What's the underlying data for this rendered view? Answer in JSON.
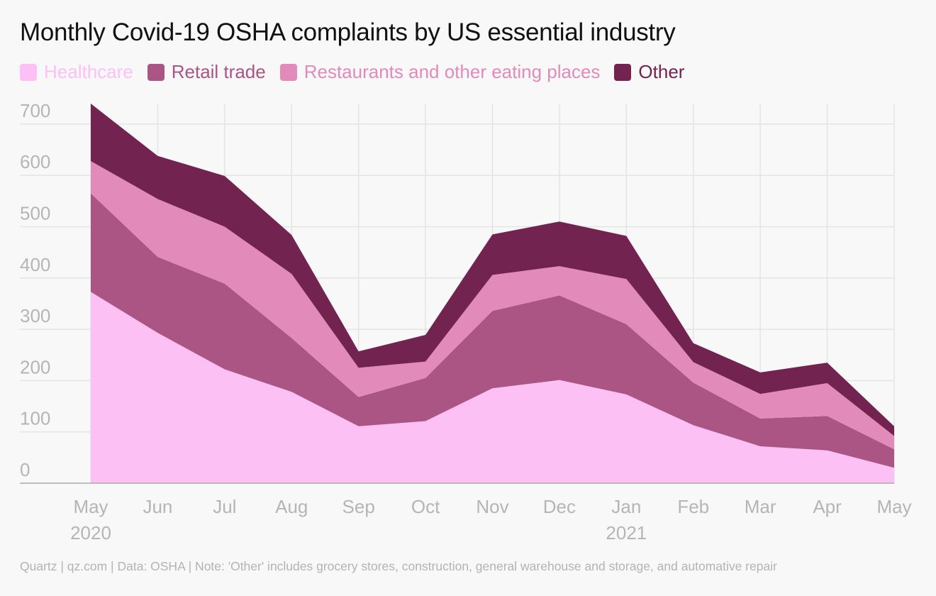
{
  "chart_data": {
    "type": "area",
    "stacked": true,
    "title": "Monthly Covid-19 OSHA complaints by US essential industry",
    "x": [
      "May",
      "Jun",
      "Jul",
      "Aug",
      "Sep",
      "Oct",
      "Nov",
      "Dec",
      "Jan",
      "Feb",
      "Mar",
      "Apr",
      "May"
    ],
    "year_labels": [
      "2020",
      "",
      "",
      "",
      "",
      "",
      "",
      "",
      "2021",
      "",
      "",
      "",
      ""
    ],
    "ylim": [
      0,
      740
    ],
    "yticks": [
      0,
      100,
      200,
      300,
      400,
      500,
      600,
      700
    ],
    "grid": true,
    "legend_position": "top-left",
    "series": [
      {
        "name": "Healthcare",
        "color": "#fcc0f5",
        "values": [
          373,
          293,
          222,
          178,
          111,
          121,
          185,
          201,
          173,
          113,
          72,
          64,
          30
        ]
      },
      {
        "name": "Retail trade",
        "color": "#aa5583",
        "values": [
          192,
          148,
          167,
          105,
          57,
          84,
          151,
          165,
          137,
          83,
          54,
          67,
          36
        ]
      },
      {
        "name": "Restaurants and other eating places",
        "color": "#e28ab9",
        "values": [
          63,
          113,
          111,
          125,
          57,
          32,
          70,
          57,
          88,
          40,
          48,
          64,
          26
        ]
      },
      {
        "name": "Other",
        "color": "#73234f",
        "values": [
          112,
          84,
          99,
          76,
          32,
          52,
          79,
          87,
          84,
          37,
          42,
          40,
          19
        ]
      }
    ]
  },
  "footer": "Quartz | qz.com | Data: OSHA | Note: 'Other' includes grocery stores, construction, general warehouse and storage, and automative repair"
}
